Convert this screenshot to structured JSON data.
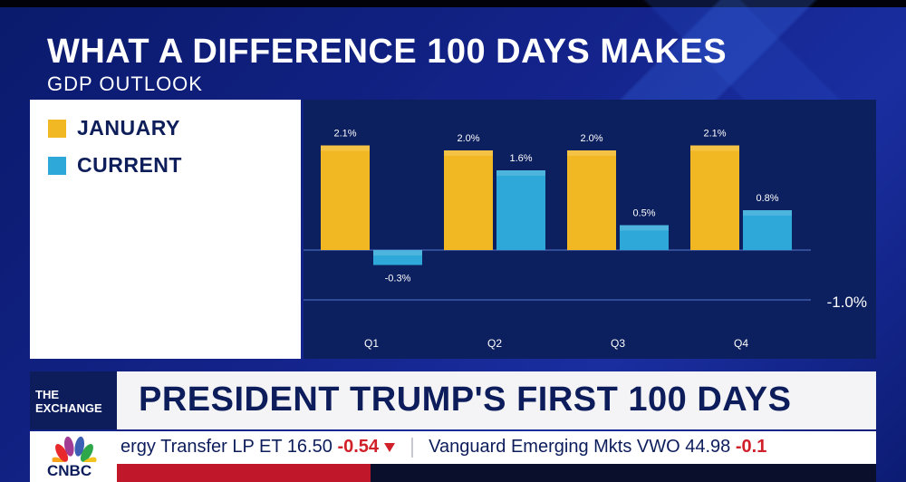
{
  "title": "WHAT A DIFFERENCE 100 DAYS MAKES",
  "subtitle": "GDP OUTLOOK",
  "legend": [
    {
      "label": "JANUARY",
      "color": "#f2b824"
    },
    {
      "label": "CURRENT",
      "color": "#2ea7d9"
    }
  ],
  "chart_data": {
    "type": "bar",
    "title": "WHAT A DIFFERENCE 100 DAYS MAKES",
    "subtitle": "GDP OUTLOOK",
    "categories": [
      "Q1",
      "Q2",
      "Q3",
      "Q4"
    ],
    "series": [
      {
        "name": "JANUARY",
        "color": "#f2b824",
        "values": [
          2.1,
          2.0,
          2.0,
          2.1
        ],
        "labels": [
          "2.1%",
          "2.0%",
          "2.0%",
          "2.1%"
        ]
      },
      {
        "name": "CURRENT",
        "color": "#2ea7d9",
        "values": [
          -0.3,
          1.6,
          0.5,
          0.8
        ],
        "labels": [
          "-0.3%",
          "1.6%",
          "0.5%",
          "0.8%"
        ]
      }
    ],
    "reference_line": {
      "value": -1.0,
      "label": "-1.0%"
    },
    "ylim": [
      -1.1,
      2.4
    ],
    "legend_position": "left panel",
    "grid": false
  },
  "lower_third": {
    "show": "THE EXCHANGE",
    "show_line1": "THE",
    "show_line2": "EXCHANGE",
    "headline": "PRESIDENT TRUMP'S FIRST 100 DAYS"
  },
  "network": "CNBC",
  "ticker": [
    {
      "name": "ergy Transfer LP",
      "symbol": "ET",
      "price": "16.50",
      "change": "-0.54"
    },
    {
      "name": "Vanguard Emerging Mkts",
      "symbol": "VWO",
      "price": "44.98",
      "change": "-0.1"
    }
  ],
  "colors": {
    "january": "#f2b824",
    "current": "#2ea7d9",
    "panel": "#0c1f5e",
    "background": "#13238a"
  }
}
